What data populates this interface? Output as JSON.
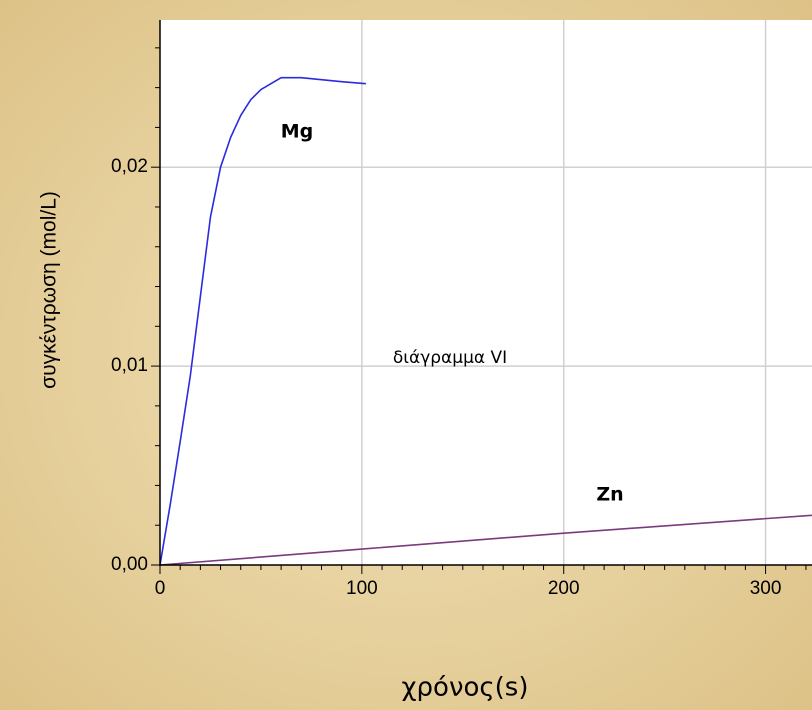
{
  "chart_data": {
    "type": "line",
    "y_label": "συγκέντρωση (mol/L)",
    "x_label": "χρόνος(s)",
    "annotations": [
      "Mg",
      "Zn",
      "διάγραμμα VI"
    ],
    "series": [
      {
        "name": "Mg",
        "color": "#2b2be0",
        "x": [
          0,
          5,
          10,
          15,
          20,
          25,
          30,
          35,
          40,
          45,
          50,
          60,
          70,
          80,
          90,
          102
        ],
        "values": [
          0,
          0.003,
          0.0062,
          0.0095,
          0.0135,
          0.0175,
          0.02,
          0.0215,
          0.0226,
          0.0234,
          0.0239,
          0.0245,
          0.0245,
          0.0244,
          0.0243,
          0.0242
        ]
      },
      {
        "name": "Zn",
        "color": "#7b3a80",
        "x": [
          0,
          100,
          200,
          323
        ],
        "values": [
          0,
          0.0008,
          0.0016,
          0.0025
        ]
      }
    ],
    "xlim": [
      0,
      323
    ],
    "ylim": [
      0,
      0.0274
    ],
    "xticks": [
      0,
      100,
      200,
      300
    ],
    "yticks": [
      {
        "value": 0,
        "label": "0,00"
      },
      {
        "value": 0.01,
        "label": "0,01"
      },
      {
        "value": 0.02,
        "label": "0,02"
      }
    ],
    "xminorticks": [
      10,
      20,
      30,
      40,
      50,
      60,
      70,
      80,
      90,
      110,
      120,
      130,
      140,
      150,
      160,
      170,
      180,
      190,
      210,
      220,
      230,
      240,
      250,
      260,
      270,
      280,
      290,
      310,
      320
    ],
    "yminorticks": [
      0.002,
      0.004,
      0.006,
      0.008,
      0.012,
      0.014,
      0.016,
      0.018,
      0.022,
      0.024,
      0.026
    ],
    "grid": true
  }
}
